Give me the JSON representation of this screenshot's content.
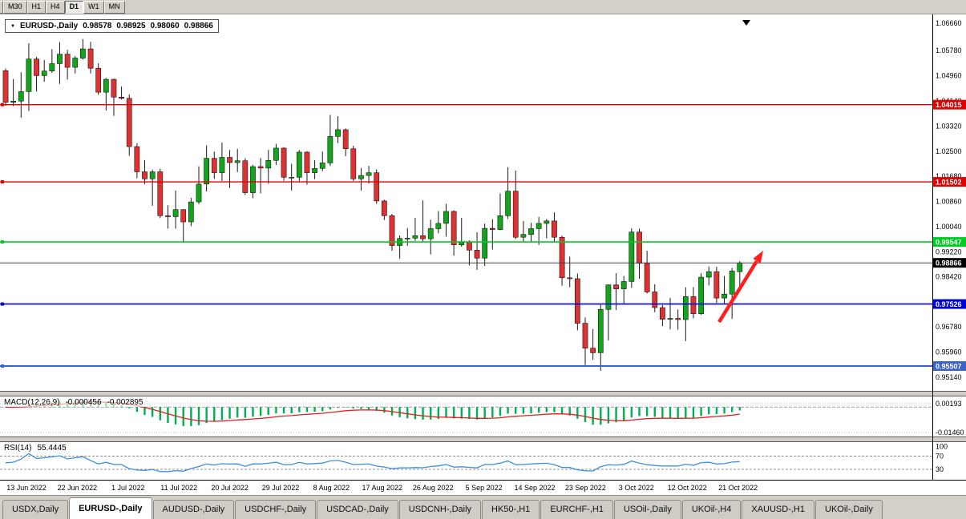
{
  "toolbar": {
    "periods": [
      "5",
      "M30",
      "H1",
      "H4",
      "D1",
      "W1",
      "MN"
    ],
    "active_period": "D1",
    "first_partial": true
  },
  "icons": {
    "dropdown_triangle": "▼"
  },
  "chart": {
    "symbol_period": "EURUSD-,Daily",
    "open": "0.98578",
    "high": "0.98925",
    "low": "0.98060",
    "close": "0.98866"
  },
  "macd": {
    "name": "MACD(12,26,9)",
    "value1": "-0.000456",
    "value2": "-0.002895"
  },
  "rsi": {
    "name": "RSI(14)",
    "value": "55.4445"
  },
  "colors": {
    "bull": "#12a41b",
    "bear": "#dc3232",
    "wick": "#1a1a1a",
    "macd_hist": "#00b050",
    "macd_signal": "#dd2222",
    "rsi_line": "#3e8ede",
    "arrow": "#ff1f1f",
    "current_label_bg": "#000000"
  },
  "chart_data": {
    "type": "candlestick",
    "symbol": "EURUSD-",
    "timeframe": "Daily",
    "current_price": 0.98866,
    "y_axis_ticks": [
      "1.06660",
      "1.05780",
      "1.04960",
      "1.04140",
      "1.03320",
      "1.02500",
      "1.01680",
      "1.00860",
      "1.00040",
      "0.99220",
      "0.98420",
      "0.97600",
      "0.96780",
      "0.95960",
      "0.95140"
    ],
    "x_axis_dates": [
      "13 Jun 2022",
      "22 Jun 2022",
      "1 Jul 2022",
      "11 Jul 2022",
      "20 Jul 2022",
      "29 Jul 2022",
      "8 Aug 2022",
      "17 Aug 2022",
      "26 Aug 2022",
      "5 Sep 2022",
      "14 Sep 2022",
      "23 Sep 2022",
      "3 Oct 2022",
      "12 Oct 2022",
      "21 Oct 2022"
    ],
    "horizontal_lines": [
      {
        "price": 1.04015,
        "label": "1.04015",
        "color": "#e00000",
        "width": 1.4
      },
      {
        "price": 1.01502,
        "label": "1.01502",
        "color": "#e00000",
        "width": 1.4
      },
      {
        "price": 0.99547,
        "label": "0.99547",
        "color": "#00cc22",
        "width": 1.6
      },
      {
        "price": 0.97526,
        "label": "0.97526",
        "color": "#0000d8",
        "width": 1.6
      },
      {
        "price": 0.95507,
        "label": "0.95507",
        "color": "#3a62c8",
        "width": 2.0
      }
    ],
    "indicators": [
      {
        "name": "MACD",
        "params": "12,26,9",
        "values_text": [
          "-0.000456",
          "-0.002895"
        ],
        "axis_ticks": [
          "0.00193",
          "-0.01460"
        ]
      },
      {
        "name": "RSI",
        "params": "14",
        "value_text": "55.4445",
        "axis_ticks": [
          "100",
          "70",
          "30"
        ],
        "levels": [
          70,
          30
        ]
      }
    ],
    "ohlc": [
      [
        1.0512,
        1.0519,
        1.0398,
        1.0409
      ],
      [
        1.0409,
        1.0485,
        1.0397,
        1.0413
      ],
      [
        1.0413,
        1.0507,
        1.0359,
        1.0444
      ],
      [
        1.0444,
        1.0601,
        1.0381,
        1.055
      ],
      [
        1.055,
        1.0557,
        1.0444,
        1.0496
      ],
      [
        1.0496,
        1.0547,
        1.0476,
        1.0511
      ],
      [
        1.0511,
        1.0582,
        1.0505,
        1.0535
      ],
      [
        1.0535,
        1.0605,
        1.0469,
        1.0566
      ],
      [
        1.0566,
        1.058,
        1.0483,
        1.0523
      ],
      [
        1.0523,
        1.056,
        1.0503,
        1.0553
      ],
      [
        1.0553,
        1.0615,
        1.0548,
        1.0583
      ],
      [
        1.0583,
        1.0606,
        1.0503,
        1.052
      ],
      [
        1.052,
        1.0536,
        1.0434,
        1.0442
      ],
      [
        1.0442,
        1.0488,
        1.0382,
        1.0484
      ],
      [
        1.0484,
        1.0486,
        1.0365,
        1.0426
      ],
      [
        1.0426,
        1.0461,
        1.0418,
        1.0422
      ],
      [
        1.0422,
        1.0435,
        1.0235,
        1.0265
      ],
      [
        1.0265,
        1.0276,
        1.0162,
        1.0183
      ],
      [
        1.0183,
        1.0221,
        1.0143,
        1.016
      ],
      [
        1.016,
        1.019,
        1.0072,
        1.0183
      ],
      [
        1.0183,
        1.0193,
        1.0032,
        1.004
      ],
      [
        1.004,
        1.0074,
        0.9998,
        1.0037
      ],
      [
        1.0037,
        1.0122,
        0.9998,
        1.006
      ],
      [
        1.006,
        1.0061,
        0.9952,
        1.002
      ],
      [
        1.002,
        1.0098,
        1.0006,
        1.0085
      ],
      [
        1.0085,
        1.0201,
        1.0078,
        1.0143
      ],
      [
        1.0143,
        1.0269,
        1.0119,
        1.0227
      ],
      [
        1.0227,
        1.0249,
        1.016,
        1.018
      ],
      [
        1.018,
        1.0278,
        1.0153,
        1.023
      ],
      [
        1.023,
        1.0254,
        1.013,
        1.0213
      ],
      [
        1.0213,
        1.0258,
        1.0182,
        1.0219
      ],
      [
        1.0219,
        1.0227,
        1.0108,
        1.0115
      ],
      [
        1.0115,
        1.0206,
        1.0097,
        1.02
      ],
      [
        1.02,
        1.0228,
        1.0113,
        1.0195
      ],
      [
        1.0195,
        1.0254,
        1.0144,
        1.022
      ],
      [
        1.022,
        1.0274,
        1.0205,
        1.026
      ],
      [
        1.026,
        1.0263,
        1.0154,
        1.0165
      ],
      [
        1.0165,
        1.0209,
        1.0122,
        1.0165
      ],
      [
        1.0165,
        1.0254,
        1.0152,
        1.0247
      ],
      [
        1.0247,
        1.025,
        1.0141,
        1.018
      ],
      [
        1.018,
        1.0221,
        1.0159,
        1.0194
      ],
      [
        1.0194,
        1.0249,
        1.0185,
        1.0212
      ],
      [
        1.0212,
        1.0368,
        1.0202,
        1.0298
      ],
      [
        1.0298,
        1.0364,
        1.0276,
        1.032
      ],
      [
        1.032,
        1.0324,
        1.0234,
        1.0258
      ],
      [
        1.0258,
        1.0268,
        1.0153,
        1.016
      ],
      [
        1.016,
        1.0195,
        1.0122,
        1.0171
      ],
      [
        1.0171,
        1.0202,
        1.0145,
        1.018
      ],
      [
        1.018,
        1.0191,
        1.0079,
        1.0088
      ],
      [
        1.0088,
        1.0092,
        1.0026,
        1.004
      ],
      [
        1.004,
        1.0046,
        0.9926,
        0.9943
      ],
      [
        0.9943,
        0.9976,
        0.99,
        0.9966
      ],
      [
        0.9966,
        1.0,
        0.9942,
        0.9967
      ],
      [
        0.9967,
        1.0033,
        0.9958,
        0.9975
      ],
      [
        0.9975,
        1.009,
        0.9954,
        0.9965
      ],
      [
        0.9965,
        1.0027,
        0.9914,
        0.9998
      ],
      [
        0.9998,
        1.0055,
        0.9983,
        1.0015
      ],
      [
        1.0015,
        1.0079,
        0.9972,
        1.0054
      ],
      [
        1.0054,
        1.0058,
        0.991,
        0.9945
      ],
      [
        0.9945,
        1.0033,
        0.9939,
        0.9953
      ],
      [
        0.9953,
        0.996,
        0.9878,
        0.9928
      ],
      [
        0.9928,
        0.9986,
        0.9864,
        0.9902
      ],
      [
        0.9902,
        1.0014,
        0.9876,
        0.9999
      ],
      [
        0.9999,
        1.0029,
        0.993,
        0.9995
      ],
      [
        0.9995,
        1.0113,
        0.9993,
        1.004
      ],
      [
        1.004,
        1.0198,
        1.003,
        1.012
      ],
      [
        1.012,
        1.0187,
        0.9964,
        0.997
      ],
      [
        0.997,
        1.0023,
        0.9954,
        0.9979
      ],
      [
        0.9979,
        1.0017,
        0.9955,
        0.9998
      ],
      [
        0.9998,
        1.0036,
        0.9945,
        1.0015
      ],
      [
        1.0015,
        1.0029,
        0.9966,
        1.0023
      ],
      [
        1.0023,
        1.0051,
        0.9955,
        0.997
      ],
      [
        0.997,
        0.9975,
        0.9812,
        0.9838
      ],
      [
        0.9838,
        0.9907,
        0.9807,
        0.9835
      ],
      [
        0.9835,
        0.9852,
        0.9667,
        0.969
      ],
      [
        0.969,
        0.9709,
        0.9554,
        0.9609
      ],
      [
        0.9609,
        0.9671,
        0.9571,
        0.9594
      ],
      [
        0.9594,
        0.975,
        0.9535,
        0.9735
      ],
      [
        0.9735,
        0.9816,
        0.9634,
        0.9815
      ],
      [
        0.9815,
        0.9853,
        0.9733,
        0.9802
      ],
      [
        0.9802,
        0.9844,
        0.9753,
        0.9826
      ],
      [
        0.9826,
        0.9999,
        0.9805,
        0.9987
      ],
      [
        0.9987,
        0.9998,
        0.9835,
        0.9885
      ],
      [
        0.9885,
        0.9926,
        0.9787,
        0.9792
      ],
      [
        0.9792,
        0.9817,
        0.9726,
        0.9741
      ],
      [
        0.9741,
        0.9749,
        0.9681,
        0.9703
      ],
      [
        0.9703,
        0.9773,
        0.967,
        0.9706
      ],
      [
        0.9706,
        0.9735,
        0.9669,
        0.9702
      ],
      [
        0.9702,
        0.9807,
        0.9632,
        0.9777
      ],
      [
        0.9777,
        0.9808,
        0.9706,
        0.9721
      ],
      [
        0.9721,
        0.9853,
        0.9717,
        0.984
      ],
      [
        0.984,
        0.9875,
        0.9813,
        0.9858
      ],
      [
        0.9858,
        0.9874,
        0.9756,
        0.9772
      ],
      [
        0.9772,
        0.9844,
        0.9754,
        0.9785
      ],
      [
        0.9785,
        0.987,
        0.9704,
        0.986
      ],
      [
        0.98578,
        0.98925,
        0.9806,
        0.98866
      ]
    ]
  },
  "tabs": [
    {
      "label": "USDX,Daily",
      "active": false
    },
    {
      "label": "EURUSD-,Daily",
      "active": true
    },
    {
      "label": "AUDUSD-,Daily",
      "active": false
    },
    {
      "label": "USDCHF-,Daily",
      "active": false
    },
    {
      "label": "USDCAD-,Daily",
      "active": false
    },
    {
      "label": "USDCNH-,Daily",
      "active": false
    },
    {
      "label": "HK50-,H1",
      "active": false
    },
    {
      "label": "EURCHF-,H1",
      "active": false
    },
    {
      "label": "USOil-,Daily",
      "active": false
    },
    {
      "label": "UKOil-,H4",
      "active": false
    },
    {
      "label": "XAUUSD-,H1",
      "active": false
    },
    {
      "label": "UKOil-,Daily",
      "active": false
    }
  ]
}
